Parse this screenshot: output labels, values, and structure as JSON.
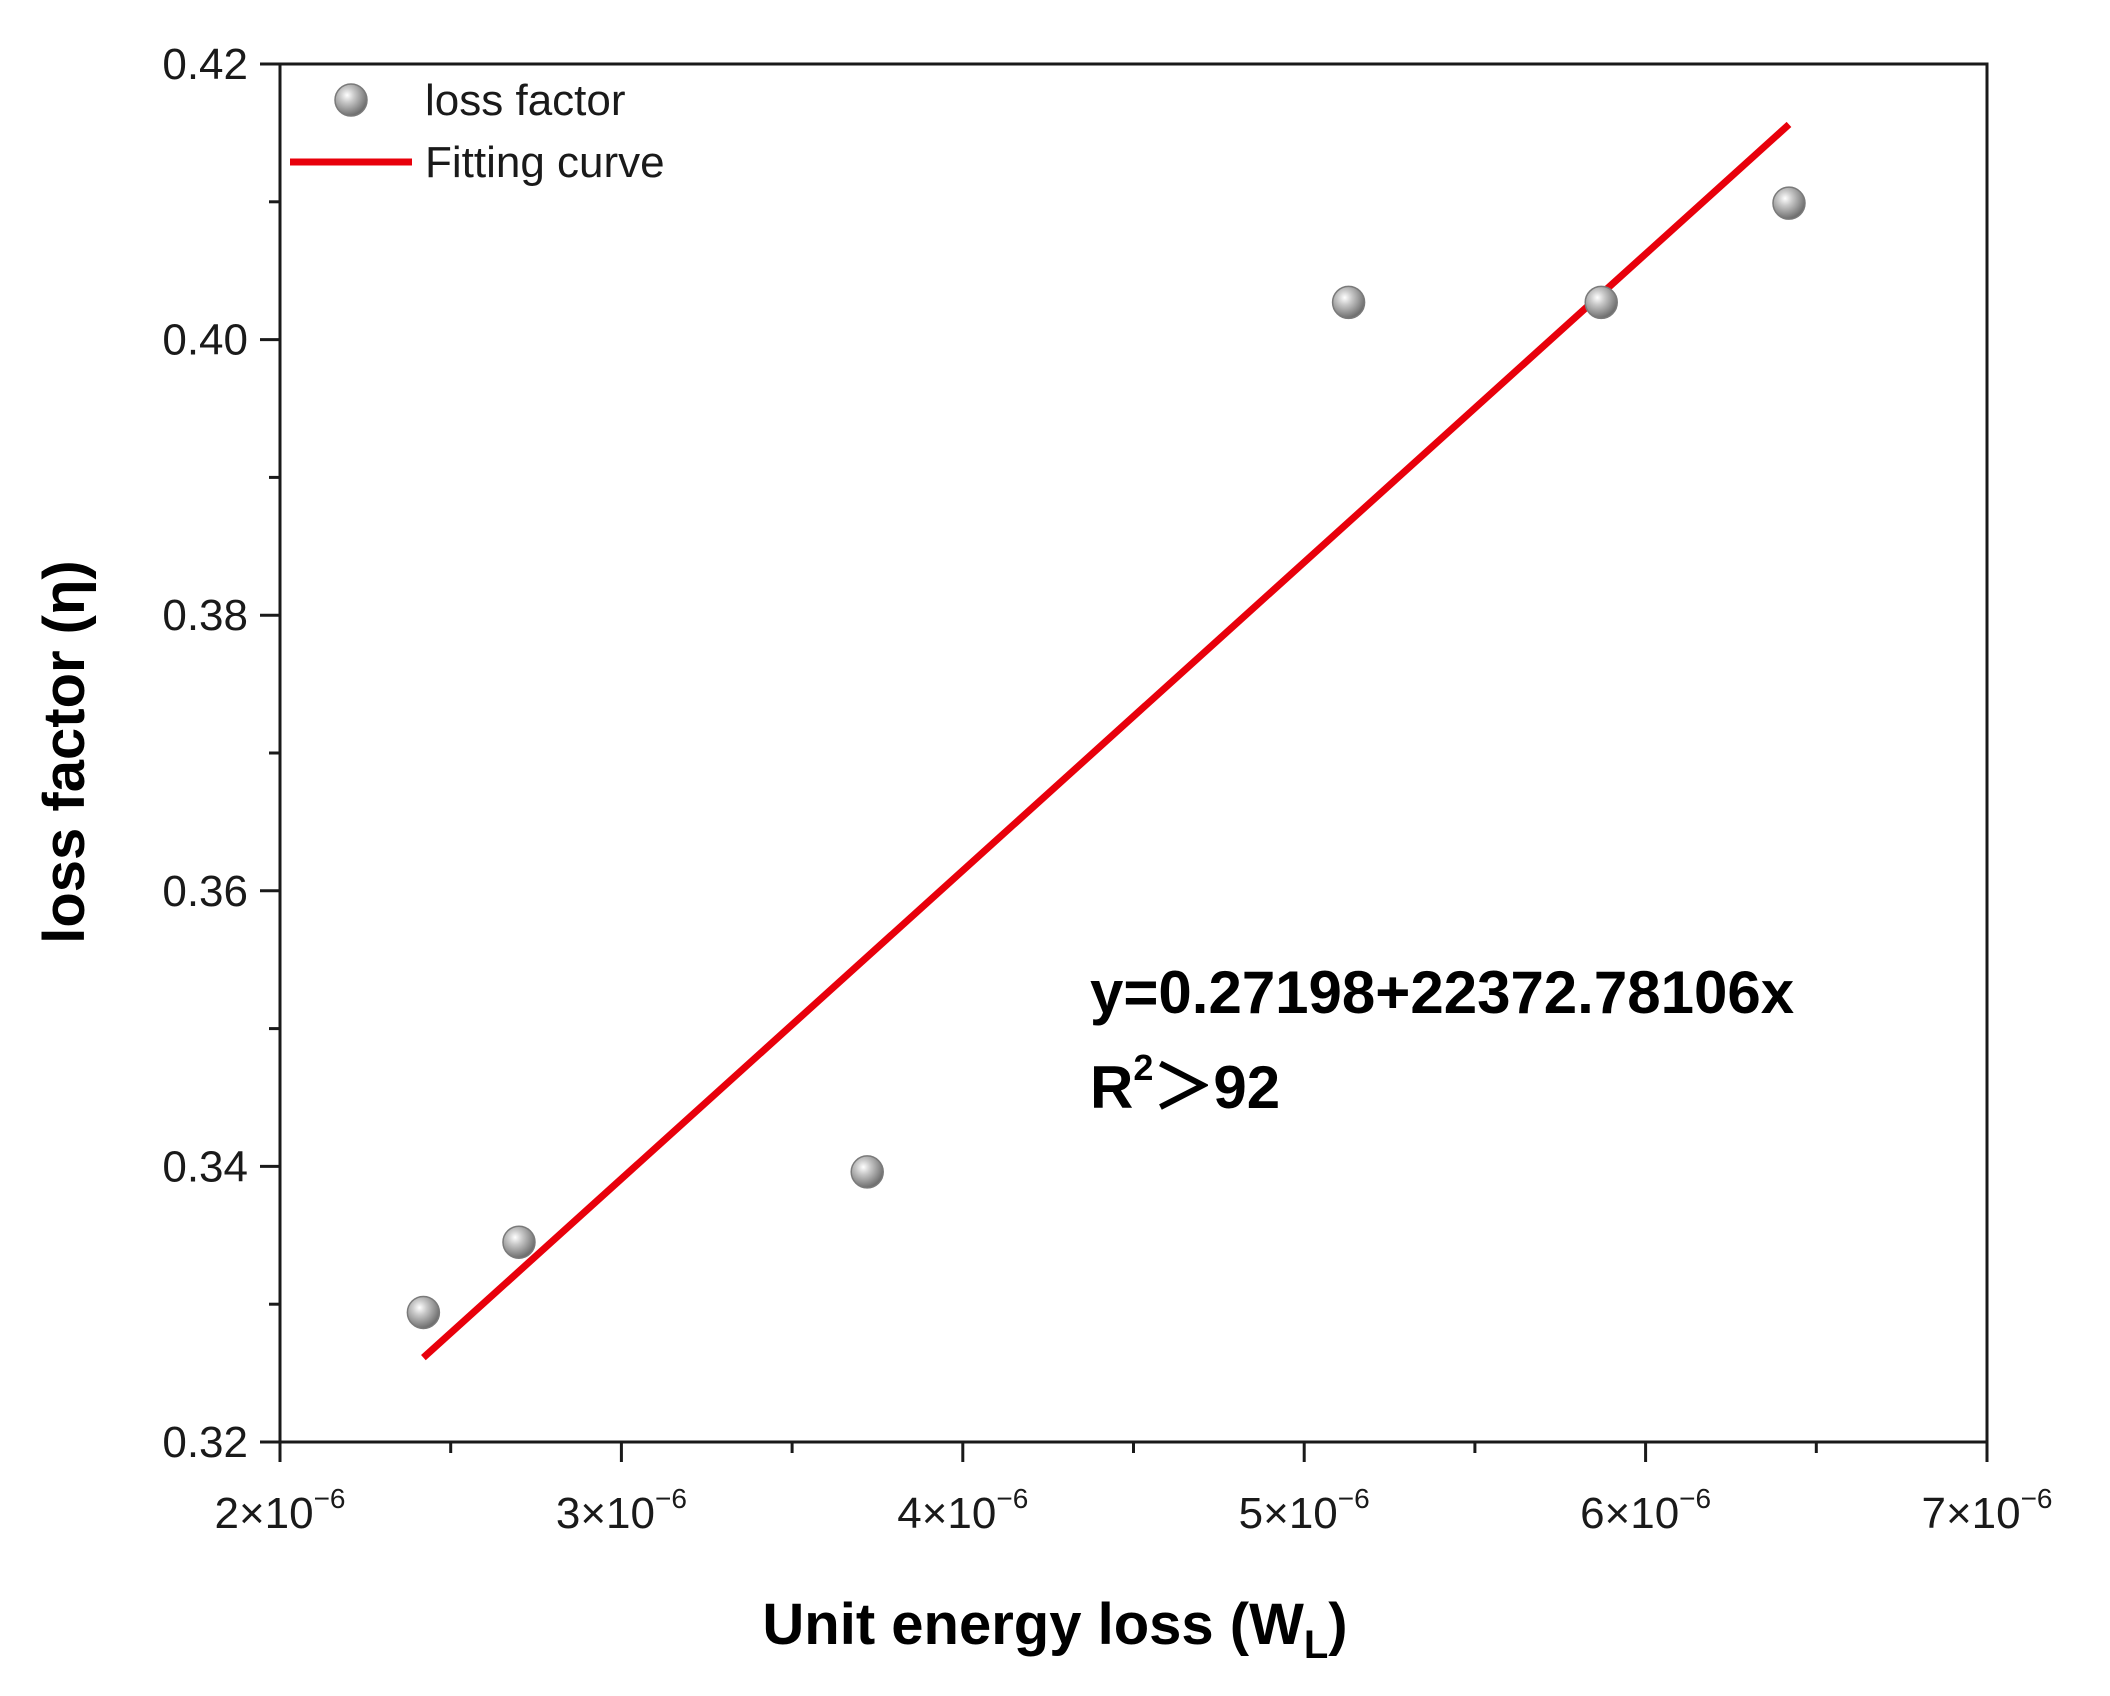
{
  "chart_data": {
    "type": "scatter",
    "title": "",
    "xlabel": "Unit energy loss (W",
    "xlabel_sub": "L",
    "xlabel_close": ")",
    "ylabel": "loss factor (η)",
    "xlim": [
      2e-06,
      7e-06
    ],
    "ylim": [
      0.32,
      0.42
    ],
    "x_ticks": [
      {
        "value": 2e-06,
        "mantissa": "2×10",
        "exponent": "−6"
      },
      {
        "value": 3e-06,
        "mantissa": "3×10",
        "exponent": "−6"
      },
      {
        "value": 4e-06,
        "mantissa": "4×10",
        "exponent": "−6"
      },
      {
        "value": 5e-06,
        "mantissa": "5×10",
        "exponent": "−6"
      },
      {
        "value": 6e-06,
        "mantissa": "6×10",
        "exponent": "−6"
      },
      {
        "value": 7e-06,
        "mantissa": "7×10",
        "exponent": "−6"
      }
    ],
    "y_ticks": [
      {
        "value": 0.32,
        "label": "0.32"
      },
      {
        "value": 0.34,
        "label": "0.34"
      },
      {
        "value": 0.36,
        "label": "0.36"
      },
      {
        "value": 0.38,
        "label": "0.38"
      },
      {
        "value": 0.4,
        "label": "0.40"
      },
      {
        "value": 0.42,
        "label": "0.42"
      }
    ],
    "series": [
      {
        "name": "loss factor",
        "kind": "scatter",
        "points": [
          {
            "x": 2.42e-06,
            "y": 0.3294
          },
          {
            "x": 2.7e-06,
            "y": 0.3345
          },
          {
            "x": 3.72e-06,
            "y": 0.3396
          },
          {
            "x": 5.13e-06,
            "y": 0.4027
          },
          {
            "x": 5.87e-06,
            "y": 0.4027
          },
          {
            "x": 6.42e-06,
            "y": 0.4099
          }
        ]
      },
      {
        "name": "Fitting curve",
        "kind": "line",
        "intercept": 0.27198,
        "slope": 22372.78106,
        "x_range": [
          2.42e-06,
          6.42e-06
        ]
      }
    ],
    "annotation": {
      "equation": "y=0.27198+22372.78106x",
      "r2_prefix": "R",
      "r2_sup": "2",
      "r2_rest": "＞92"
    },
    "legend_position": "top-left"
  },
  "colors": {
    "fit_line": "#e8000b",
    "marker_fill": "#9a9a9a",
    "axis": "#1a1a1a"
  }
}
